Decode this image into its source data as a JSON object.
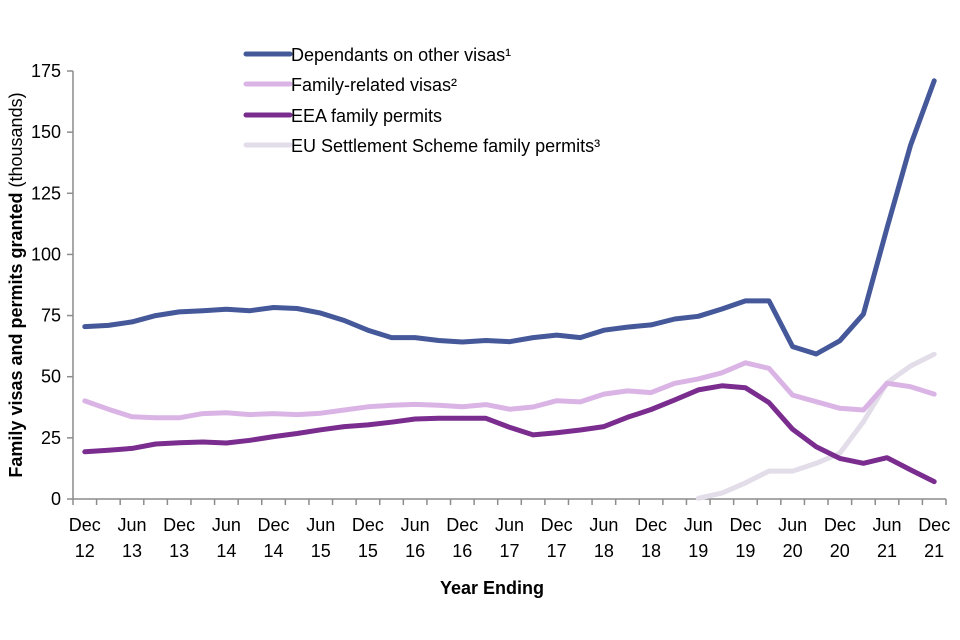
{
  "chart_data": {
    "type": "line",
    "title": "",
    "xlabel": "Year Ending",
    "ylabel_bold": "Family visas and permits granted",
    "ylabel_suffix": " (thousands)",
    "ylim": [
      0,
      175
    ],
    "yticks": [
      0,
      25,
      50,
      75,
      100,
      125,
      150,
      175
    ],
    "grid": false,
    "legend_position": "top-center",
    "x": [
      "Dec 12",
      "Mar 13",
      "Jun 13",
      "Sep 13",
      "Dec 13",
      "Mar 14",
      "Jun 14",
      "Sep 14",
      "Dec 14",
      "Mar 15",
      "Jun 15",
      "Sep 15",
      "Dec 15",
      "Mar 16",
      "Jun 16",
      "Sep 16",
      "Dec 16",
      "Mar 17",
      "Jun 17",
      "Sep 17",
      "Dec 17",
      "Mar 18",
      "Jun 18",
      "Sep 18",
      "Dec 18",
      "Mar 19",
      "Jun 19",
      "Sep 19",
      "Dec 19",
      "Mar 20",
      "Jun 20",
      "Sep 20",
      "Dec 20",
      "Mar 21",
      "Jun 21",
      "Sep 21",
      "Dec 21"
    ],
    "xtick_labels": [
      {
        "index": 0,
        "line1": "Dec",
        "line2": "12"
      },
      {
        "index": 2,
        "line1": "Jun",
        "line2": "13"
      },
      {
        "index": 4,
        "line1": "Dec",
        "line2": "13"
      },
      {
        "index": 6,
        "line1": "Jun",
        "line2": "14"
      },
      {
        "index": 8,
        "line1": "Dec",
        "line2": "14"
      },
      {
        "index": 10,
        "line1": "Jun",
        "line2": "15"
      },
      {
        "index": 12,
        "line1": "Dec",
        "line2": "15"
      },
      {
        "index": 14,
        "line1": "Jun",
        "line2": "16"
      },
      {
        "index": 16,
        "line1": "Dec",
        "line2": "16"
      },
      {
        "index": 18,
        "line1": "Jun",
        "line2": "17"
      },
      {
        "index": 20,
        "line1": "Dec",
        "line2": "17"
      },
      {
        "index": 22,
        "line1": "Jun",
        "line2": "18"
      },
      {
        "index": 24,
        "line1": "Dec",
        "line2": "18"
      },
      {
        "index": 26,
        "line1": "Jun",
        "line2": "19"
      },
      {
        "index": 28,
        "line1": "Dec",
        "line2": "19"
      },
      {
        "index": 30,
        "line1": "Jun",
        "line2": "20"
      },
      {
        "index": 32,
        "line1": "Dec",
        "line2": "20"
      },
      {
        "index": 34,
        "line1": "Jun",
        "line2": "21"
      },
      {
        "index": 36,
        "line1": "Dec",
        "line2": "21"
      }
    ],
    "series": [
      {
        "name": "Dependants on other visas¹",
        "color": "#44589a",
        "values": [
          70.5,
          71,
          72.4,
          75,
          76.5,
          77,
          77.6,
          77,
          78.3,
          77.9,
          76,
          73,
          69,
          66,
          66,
          64.8,
          64.2,
          64.8,
          64.3,
          66,
          67,
          66,
          69,
          70.3,
          71.2,
          73.6,
          74.7,
          77.7,
          81,
          81,
          62.3,
          59.3,
          64.7,
          75.6,
          110.8,
          144.7,
          171
        ]
      },
      {
        "name": "Family-related visas²",
        "color": "#dbb4e6",
        "values": [
          40.1,
          36.7,
          33.6,
          33.2,
          33.2,
          34.9,
          35.3,
          34.5,
          34.9,
          34.5,
          35.1,
          36.4,
          37.7,
          38.3,
          38.7,
          38.3,
          37.7,
          38.6,
          36.7,
          37.6,
          40.2,
          39.7,
          42.9,
          44.2,
          43.5,
          47.3,
          49.1,
          51.6,
          55.7,
          53.4,
          42.5,
          39.8,
          37.1,
          36.4,
          47.3,
          45.9,
          42.9
        ]
      },
      {
        "name": "EEA family permits",
        "color": "#7a2d8e",
        "values": [
          19.3,
          19.9,
          20.7,
          22.5,
          23.0,
          23.3,
          22.9,
          24.0,
          25.5,
          26.8,
          28.3,
          29.6,
          30.3,
          31.4,
          32.7,
          33.0,
          33.0,
          33.0,
          29.3,
          26.2,
          27.1,
          28.2,
          29.6,
          33.4,
          36.6,
          40.5,
          44.6,
          46.3,
          45.5,
          39.4,
          28.5,
          21.4,
          16.6,
          14.6,
          16.9,
          11.9,
          7.1
        ]
      },
      {
        "name": "EU Settlement Scheme family permits³",
        "color": "#e2dde8",
        "values": [
          null,
          null,
          null,
          null,
          null,
          null,
          null,
          null,
          null,
          null,
          null,
          null,
          null,
          null,
          null,
          null,
          null,
          null,
          null,
          null,
          null,
          null,
          null,
          null,
          null,
          null,
          0.3,
          2.4,
          6.6,
          11.4,
          11.4,
          14.6,
          18.7,
          31.6,
          47.5,
          54.4,
          59.2
        ]
      }
    ]
  }
}
